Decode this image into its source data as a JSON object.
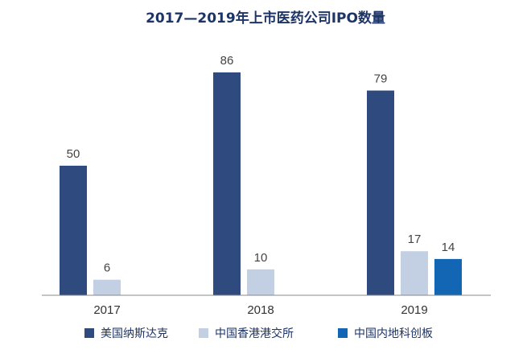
{
  "chart_data": {
    "type": "bar",
    "title": "2017—2019年上市医药公司IPO数量",
    "categories": [
      "2017",
      "2018",
      "2019"
    ],
    "series": [
      {
        "name": "美国纳斯达克",
        "color": "#2f4a7e",
        "values": [
          50,
          86,
          79
        ]
      },
      {
        "name": "中国香港港交所",
        "color": "#c3cfe2",
        "values": [
          6,
          10,
          17
        ]
      },
      {
        "name": "中国内地科创板",
        "color": "#1366b3",
        "values": [
          null,
          null,
          14
        ]
      }
    ],
    "ylim": [
      0,
      86
    ],
    "grid": false,
    "legend_position": "bottom"
  }
}
